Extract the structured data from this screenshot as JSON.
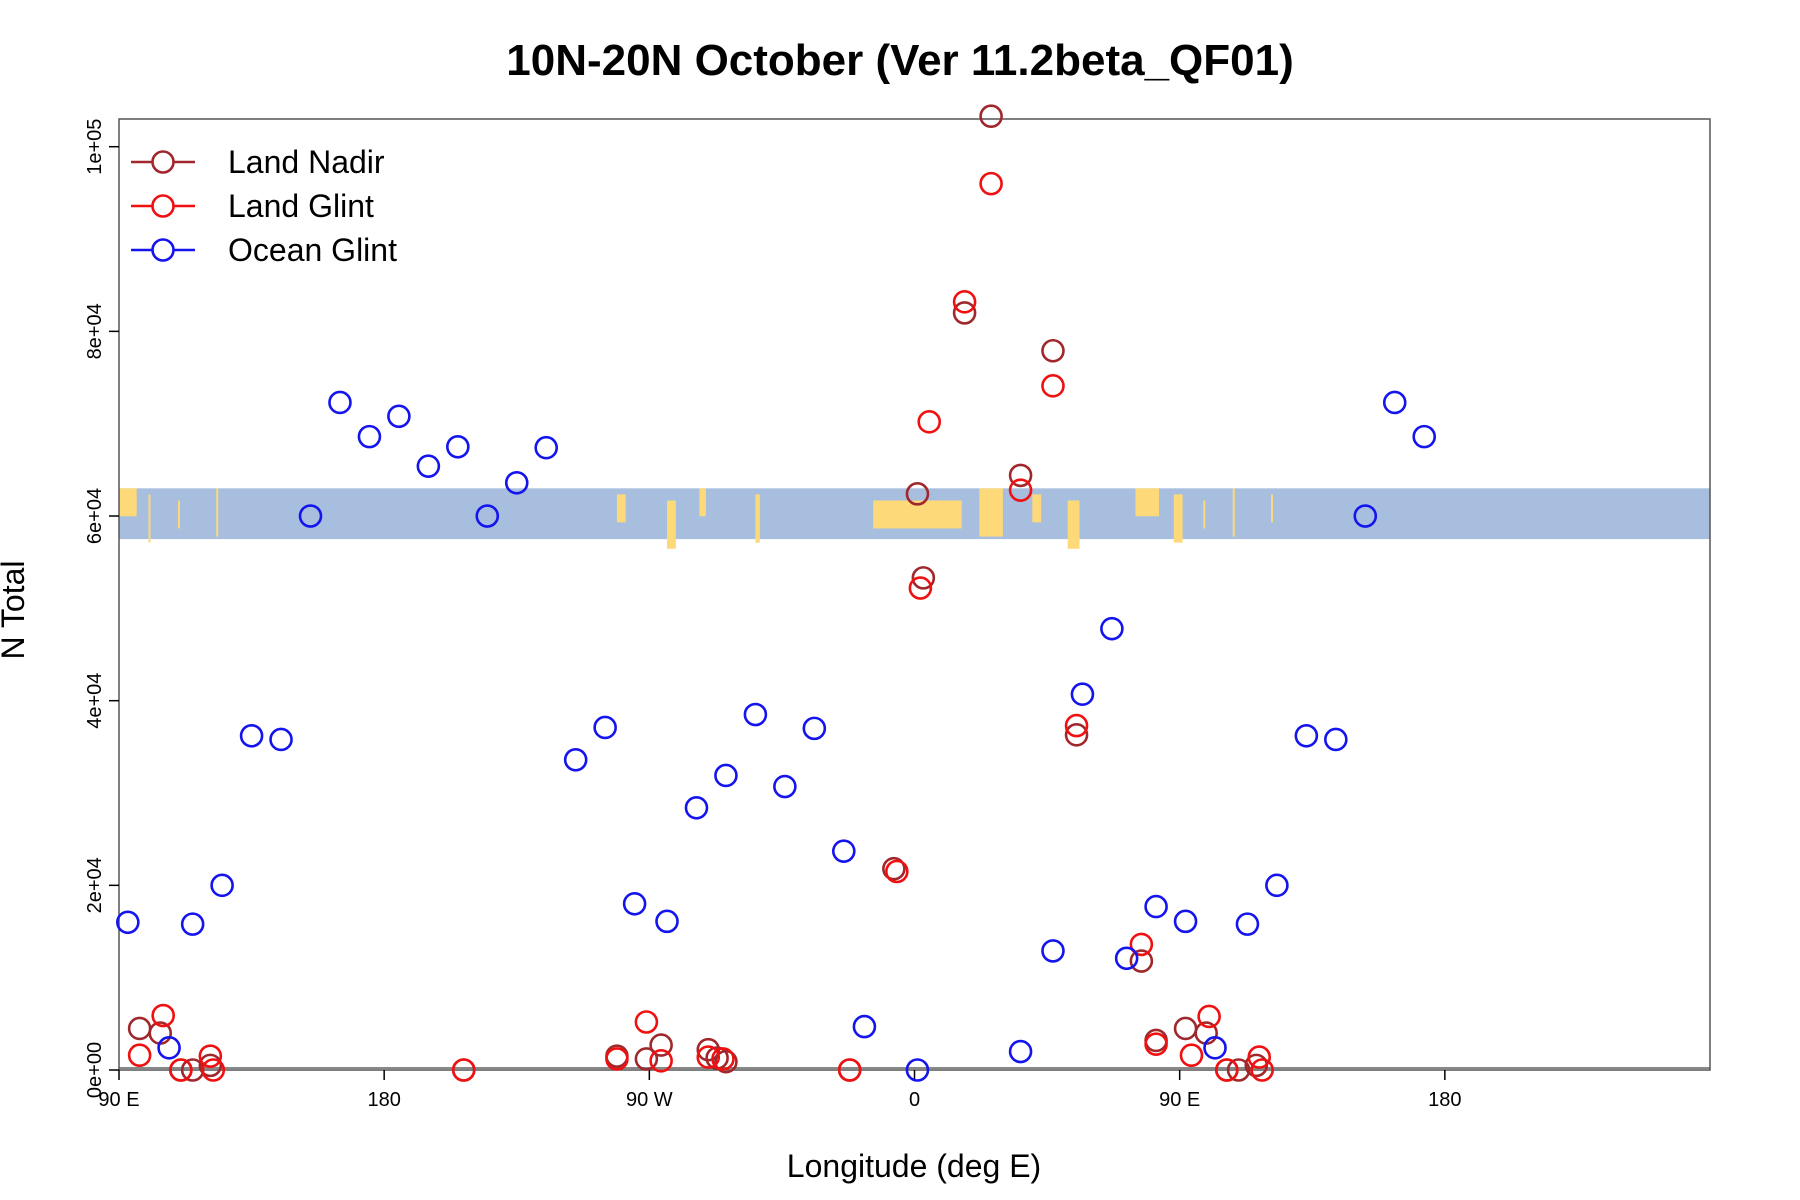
{
  "chart_data": {
    "type": "scatter",
    "title": "10N-20N October (Ver 11.2beta_QF01)",
    "xlabel": "Longitude (deg E)",
    "ylabel": "N Total",
    "xlim": [
      0,
      540
    ],
    "ylim": [
      0,
      103000
    ],
    "x_ticks": [
      {
        "value": 0,
        "label": "90 E"
      },
      {
        "value": 90,
        "label": "180"
      },
      {
        "value": 180,
        "label": "90 W"
      },
      {
        "value": 270,
        "label": "0"
      },
      {
        "value": 360,
        "label": "90 E"
      },
      {
        "value": 450,
        "label": "180"
      }
    ],
    "y_ticks": [
      {
        "value": 0,
        "label": "0e+00"
      },
      {
        "value": 20000,
        "label": "2e+04"
      },
      {
        "value": 40000,
        "label": "4e+04"
      },
      {
        "value": 60000,
        "label": "6e+04"
      },
      {
        "value": 80000,
        "label": "8e+04"
      },
      {
        "value": 100000,
        "label": "1e+05"
      }
    ],
    "legend_position": "top-left",
    "map_strip": {
      "y_range": [
        57500,
        63000
      ],
      "ocean_color": "#a7bedf",
      "land_color": "#fdd97a"
    },
    "series": [
      {
        "name": "Land Nadir",
        "color": "#a0282c",
        "points": [
          [
            7,
            4500
          ],
          [
            14,
            4000
          ],
          [
            21,
            0
          ],
          [
            25,
            0
          ],
          [
            31,
            500
          ],
          [
            117,
            0
          ],
          [
            169,
            1500
          ],
          [
            179,
            1200
          ],
          [
            184,
            2700
          ],
          [
            200,
            2200
          ],
          [
            203,
            1300
          ],
          [
            206,
            900
          ],
          [
            248,
            0
          ],
          [
            263,
            21800
          ],
          [
            271,
            62400
          ],
          [
            273,
            53300
          ],
          [
            287,
            82000
          ],
          [
            296,
            103300
          ],
          [
            306,
            64400
          ],
          [
            317,
            77900
          ],
          [
            325,
            36300
          ],
          [
            347,
            11800
          ],
          [
            352,
            3200
          ],
          [
            362,
            4500
          ],
          [
            369,
            4000
          ],
          [
            376,
            0
          ],
          [
            380,
            0
          ],
          [
            386,
            500
          ]
        ]
      },
      {
        "name": "Land Glint",
        "color": "#f01010",
        "points": [
          [
            7,
            1600
          ],
          [
            15,
            5900
          ],
          [
            21,
            0
          ],
          [
            31,
            1500
          ],
          [
            32,
            0
          ],
          [
            117,
            0
          ],
          [
            169,
            1200
          ],
          [
            179,
            5200
          ],
          [
            184,
            1000
          ],
          [
            200,
            1400
          ],
          [
            205,
            1200
          ],
          [
            248,
            0
          ],
          [
            264,
            21500
          ],
          [
            272,
            52200
          ],
          [
            275,
            70200
          ],
          [
            287,
            83200
          ],
          [
            296,
            96000
          ],
          [
            306,
            62800
          ],
          [
            317,
            74100
          ],
          [
            325,
            37300
          ],
          [
            347,
            13600
          ],
          [
            352,
            2800
          ],
          [
            364,
            1600
          ],
          [
            370,
            5800
          ],
          [
            376,
            0
          ],
          [
            387,
            1400
          ],
          [
            388,
            0
          ]
        ]
      },
      {
        "name": "Ocean Glint",
        "color": "#1414ee",
        "points": [
          [
            3,
            16000
          ],
          [
            17,
            2400
          ],
          [
            25,
            15800
          ],
          [
            35,
            20000
          ],
          [
            45,
            36200
          ],
          [
            55,
            35800
          ],
          [
            65,
            60000
          ],
          [
            75,
            72300
          ],
          [
            85,
            68600
          ],
          [
            95,
            70800
          ],
          [
            105,
            65400
          ],
          [
            115,
            67500
          ],
          [
            125,
            60000
          ],
          [
            135,
            63600
          ],
          [
            145,
            67400
          ],
          [
            155,
            33600
          ],
          [
            165,
            37100
          ],
          [
            175,
            18000
          ],
          [
            186,
            16100
          ],
          [
            196,
            28400
          ],
          [
            206,
            31900
          ],
          [
            216,
            38500
          ],
          [
            226,
            30700
          ],
          [
            236,
            37000
          ],
          [
            246,
            23700
          ],
          [
            253,
            4700
          ],
          [
            271,
            0
          ],
          [
            306,
            2000
          ],
          [
            317,
            12900
          ],
          [
            327,
            40700
          ],
          [
            337,
            47800
          ],
          [
            342,
            12100
          ],
          [
            352,
            17700
          ],
          [
            362,
            16100
          ],
          [
            372,
            2400
          ],
          [
            383,
            15800
          ],
          [
            393,
            20000
          ],
          [
            403,
            36200
          ],
          [
            413,
            35800
          ],
          [
            423,
            60000
          ],
          [
            433,
            72300
          ],
          [
            443,
            68600
          ]
        ]
      }
    ]
  }
}
